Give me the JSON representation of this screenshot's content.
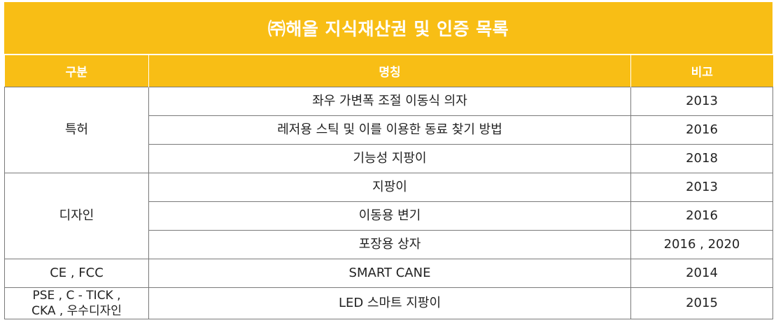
{
  "title": "㈜해올 지식재산권 및 인증 목록",
  "headers": {
    "category": "구분",
    "name": "명칭",
    "note": "비고"
  },
  "groups": [
    {
      "category": "특허",
      "rows": [
        {
          "name": "좌우 가변폭 조절 이동식 의자",
          "note": "2013"
        },
        {
          "name": "레저용 스틱 및 이를 이용한 동료 찾기 방법",
          "note": "2016"
        },
        {
          "name": "기능성 지팡이",
          "note": "2018"
        }
      ]
    },
    {
      "category": "디자인",
      "rows": [
        {
          "name": "지팡이",
          "note": "2013"
        },
        {
          "name": "이동용 변기",
          "note": "2016"
        },
        {
          "name": "포장용 상자",
          "note": "2016 , 2020"
        }
      ]
    },
    {
      "category": "CE , FCC",
      "rows": [
        {
          "name": "SMART CANE",
          "note": "2014"
        }
      ]
    },
    {
      "category_line1": "PSE , C - TICK ,",
      "category_line2": "CKA , 우수디자인",
      "rows": [
        {
          "name": "LED 스마트 지팡이",
          "note": "2015"
        }
      ]
    }
  ]
}
